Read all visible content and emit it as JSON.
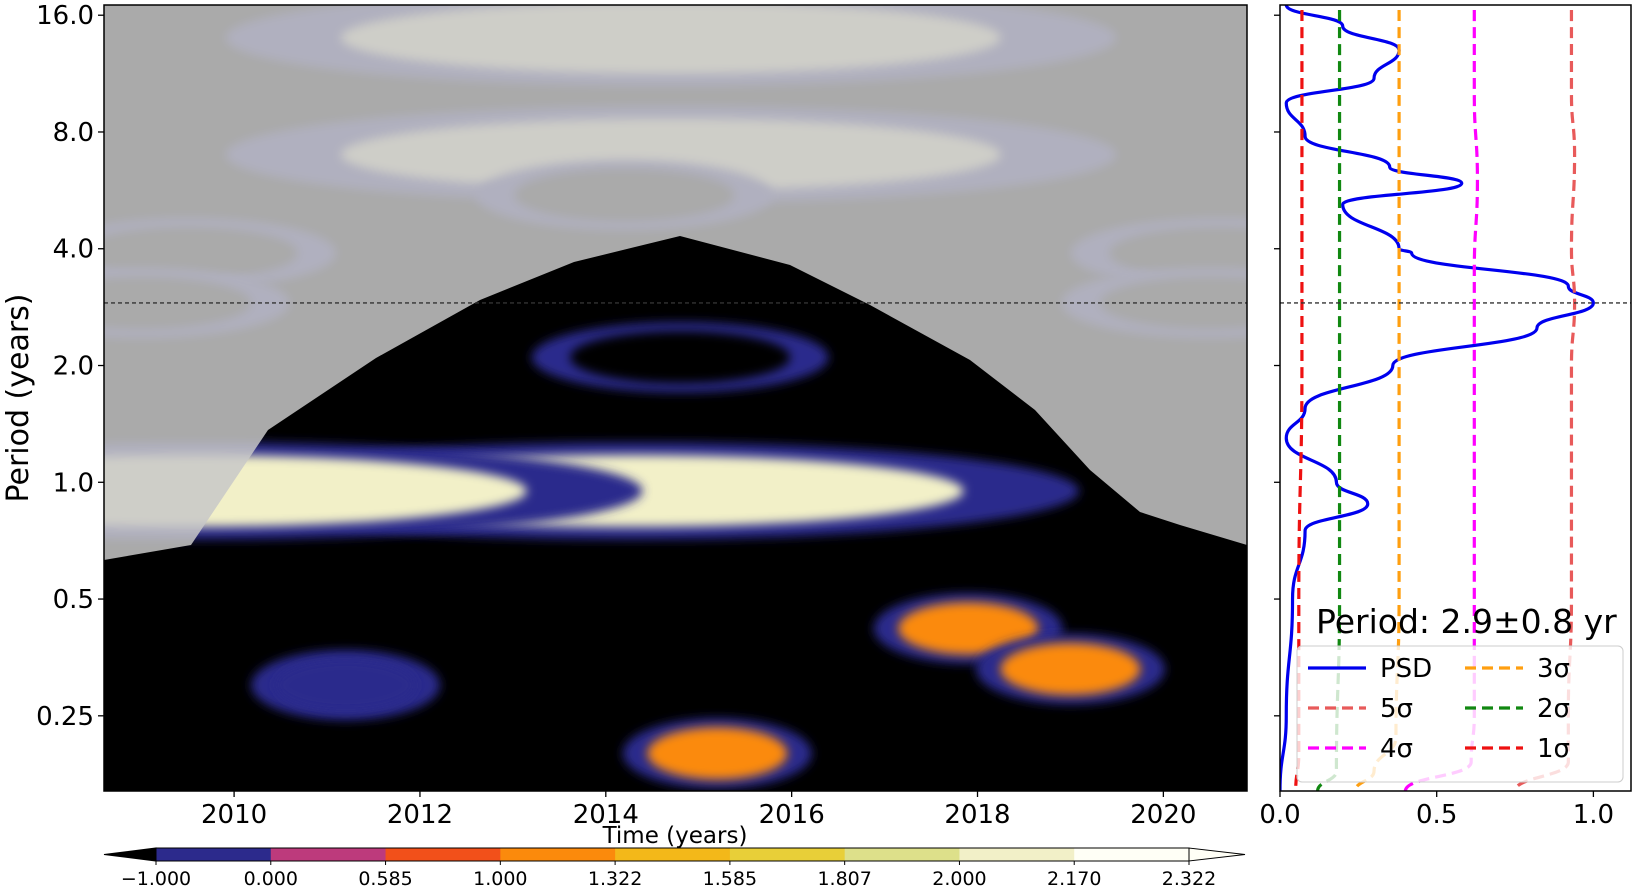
{
  "chart_data": [
    {
      "type": "heatmap",
      "title": "",
      "xlabel": "Time (years)",
      "ylabel": "Period (years)",
      "xlim": [
        2008.6,
        2020.9
      ],
      "ylim": [
        0.16,
        17.0
      ],
      "yscale": "log2",
      "x_ticks": [
        "2010",
        "2012",
        "2014",
        "2016",
        "2018",
        "2020"
      ],
      "y_ticks": [
        "0.25",
        "0.5",
        "1.0",
        "2.0",
        "4.0",
        "8.0",
        "16.0"
      ],
      "reference_line_period": 2.9,
      "colorbar": {
        "levels": [
          "−1.000",
          "0.000",
          "0.585",
          "1.000",
          "1.322",
          "1.585",
          "1.807",
          "2.000",
          "2.170",
          "2.322"
        ],
        "colors": [
          "#000000",
          "#2c2a8c",
          "#bd3a7c",
          "#f2501a",
          "#fb8a0c",
          "#f3b819",
          "#e8cf38",
          "#dde08a",
          "#f2f0c8",
          "#fffff6"
        ],
        "extend": "both"
      },
      "blobs": [
        {
          "t": 2014.7,
          "p": 14.0,
          "value": 2.3
        },
        {
          "t": 2014.7,
          "p": 7.0,
          "value": 2.3
        },
        {
          "t": 2014.2,
          "p": 5.5,
          "value": -1.0
        },
        {
          "t": 2009.5,
          "p": 3.9,
          "value": -0.5
        },
        {
          "t": 2020.6,
          "p": 3.9,
          "value": -0.5
        },
        {
          "t": 2009.0,
          "p": 2.9,
          "value": -0.5
        },
        {
          "t": 2020.5,
          "p": 2.9,
          "value": -0.5
        },
        {
          "t": 2014.8,
          "p": 2.1,
          "value": -0.5
        },
        {
          "t": 2014.3,
          "p": 0.95,
          "value": 2.3
        },
        {
          "t": 2009.6,
          "p": 0.95,
          "value": 2.2
        },
        {
          "t": 2017.9,
          "p": 0.42,
          "value": 1.5
        },
        {
          "t": 2019.0,
          "p": 0.33,
          "value": 1.5
        },
        {
          "t": 2011.2,
          "p": 0.3,
          "value": 0.3
        },
        {
          "t": 2015.2,
          "p": 0.2,
          "value": 1.4
        }
      ]
    },
    {
      "type": "line",
      "xlim": [
        0.0,
        1.12
      ],
      "x_ticks": [
        "0.0",
        "0.5",
        "1.0"
      ],
      "legend_position": "lower-right",
      "annotation": "Period: 2.9±0.8 yr",
      "series": [
        {
          "name": "PSD",
          "color": "#0000ee",
          "style": "solid",
          "x": [
            0.02,
            0.2,
            0.38,
            0.3,
            0.02,
            0.08,
            0.35,
            0.58,
            0.2,
            0.38,
            0.42,
            0.92,
            1.0,
            0.82,
            0.36,
            0.08,
            0.02,
            0.18,
            0.28,
            0.08,
            0.04,
            0.02,
            0.0
          ],
          "y": [
            17.0,
            15.0,
            13.0,
            11.0,
            9.5,
            7.8,
            6.5,
            5.9,
            5.2,
            4.0,
            3.9,
            3.2,
            2.9,
            2.5,
            2.0,
            1.55,
            1.3,
            1.0,
            0.88,
            0.75,
            0.5,
            0.25,
            0.16
          ]
        },
        {
          "name": "5σ",
          "color": "#e85a5a",
          "style": "dashed",
          "x": [
            0.93,
            0.93,
            0.94,
            0.93,
            0.94,
            0.93,
            0.93,
            0.93,
            0.92,
            0.92,
            0.75
          ],
          "y": [
            16.5,
            10.0,
            7.0,
            4.0,
            2.9,
            2.0,
            1.0,
            0.5,
            0.25,
            0.19,
            0.16
          ]
        },
        {
          "name": "4σ",
          "color": "#ff00ff",
          "style": "dashed",
          "x": [
            0.62,
            0.62,
            0.63,
            0.62,
            0.62,
            0.62,
            0.62,
            0.62,
            0.61,
            0.4
          ],
          "y": [
            16.5,
            10.0,
            6.0,
            3.5,
            2.0,
            1.0,
            0.5,
            0.25,
            0.19,
            0.16
          ]
        },
        {
          "name": "3σ",
          "color": "#ff9f10",
          "style": "dashed",
          "x": [
            0.38,
            0.38,
            0.38,
            0.38,
            0.38,
            0.38,
            0.37,
            0.3,
            0.24
          ],
          "y": [
            16.5,
            8.0,
            4.0,
            2.0,
            1.0,
            0.5,
            0.22,
            0.18,
            0.16
          ]
        },
        {
          "name": "2σ",
          "color": "#118811",
          "style": "dashed",
          "x": [
            0.19,
            0.19,
            0.19,
            0.19,
            0.19,
            0.18,
            0.12
          ],
          "y": [
            16.5,
            8.0,
            4.0,
            1.0,
            0.5,
            0.18,
            0.16
          ]
        },
        {
          "name": "1σ",
          "color": "#ee1111",
          "style": "dashed",
          "x": [
            0.07,
            0.07,
            0.07,
            0.06,
            0.06,
            0.05
          ],
          "y": [
            16.5,
            8.0,
            2.0,
            0.5,
            0.2,
            0.16
          ]
        }
      ]
    }
  ]
}
